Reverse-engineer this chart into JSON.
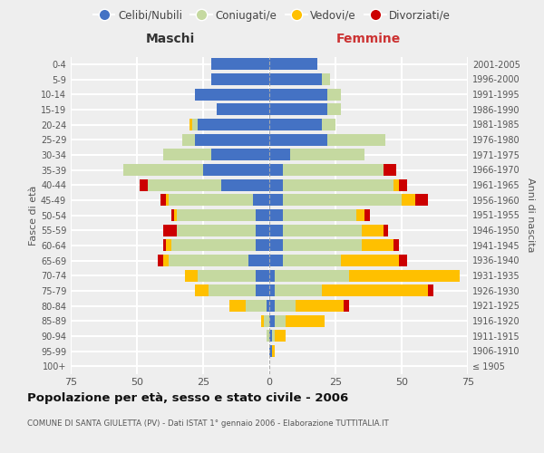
{
  "age_groups": [
    "100+",
    "95-99",
    "90-94",
    "85-89",
    "80-84",
    "75-79",
    "70-74",
    "65-69",
    "60-64",
    "55-59",
    "50-54",
    "45-49",
    "40-44",
    "35-39",
    "30-34",
    "25-29",
    "20-24",
    "15-19",
    "10-14",
    "5-9",
    "0-4"
  ],
  "birth_years": [
    "≤ 1905",
    "1906-1910",
    "1911-1915",
    "1916-1920",
    "1921-1925",
    "1926-1930",
    "1931-1935",
    "1936-1940",
    "1941-1945",
    "1946-1950",
    "1951-1955",
    "1956-1960",
    "1961-1965",
    "1966-1970",
    "1971-1975",
    "1976-1980",
    "1981-1985",
    "1986-1990",
    "1991-1995",
    "1996-2000",
    "2001-2005"
  ],
  "males": {
    "celibi": [
      0,
      0,
      0,
      0,
      1,
      5,
      5,
      8,
      5,
      5,
      5,
      6,
      18,
      25,
      22,
      28,
      27,
      20,
      28,
      22,
      22
    ],
    "coniugati": [
      0,
      0,
      1,
      2,
      8,
      18,
      22,
      30,
      32,
      30,
      30,
      32,
      28,
      30,
      18,
      5,
      2,
      0,
      0,
      0,
      0
    ],
    "vedovi": [
      0,
      0,
      0,
      1,
      6,
      5,
      5,
      2,
      2,
      0,
      1,
      1,
      0,
      0,
      0,
      0,
      1,
      0,
      0,
      0,
      0
    ],
    "divorziati": [
      0,
      0,
      0,
      0,
      0,
      0,
      0,
      2,
      1,
      5,
      1,
      2,
      3,
      0,
      0,
      0,
      0,
      0,
      0,
      0,
      0
    ]
  },
  "females": {
    "nubili": [
      0,
      1,
      1,
      2,
      2,
      2,
      2,
      5,
      5,
      5,
      5,
      5,
      5,
      5,
      8,
      22,
      20,
      22,
      22,
      20,
      18
    ],
    "coniugate": [
      0,
      0,
      1,
      4,
      8,
      18,
      28,
      22,
      30,
      30,
      28,
      45,
      42,
      38,
      28,
      22,
      5,
      5,
      5,
      3,
      0
    ],
    "vedove": [
      0,
      1,
      4,
      15,
      18,
      40,
      42,
      22,
      12,
      8,
      3,
      5,
      2,
      0,
      0,
      0,
      0,
      0,
      0,
      0,
      0
    ],
    "divorziate": [
      0,
      0,
      0,
      0,
      2,
      2,
      0,
      3,
      2,
      2,
      2,
      5,
      3,
      5,
      0,
      0,
      0,
      0,
      0,
      0,
      0
    ]
  },
  "colors": {
    "celibi": "#4472c4",
    "coniugati": "#c5d9a0",
    "vedovi": "#ffc000",
    "divorziati": "#cc0000"
  },
  "xlim": 75,
  "title": "Popolazione per età, sesso e stato civile - 2006",
  "subtitle": "COMUNE DI SANTA GIULETTA (PV) - Dati ISTAT 1° gennaio 2006 - Elaborazione TUTTITALIA.IT",
  "ylabel_left": "Fasce di età",
  "ylabel_right": "Anni di nascita",
  "xlabel_left": "Maschi",
  "xlabel_right": "Femmine",
  "bg_color": "#eeeeee",
  "grid_color": "#ffffff",
  "legend_labels": [
    "Celibi/Nubili",
    "Coniugati/e",
    "Vedovi/e",
    "Divorziati/e"
  ]
}
